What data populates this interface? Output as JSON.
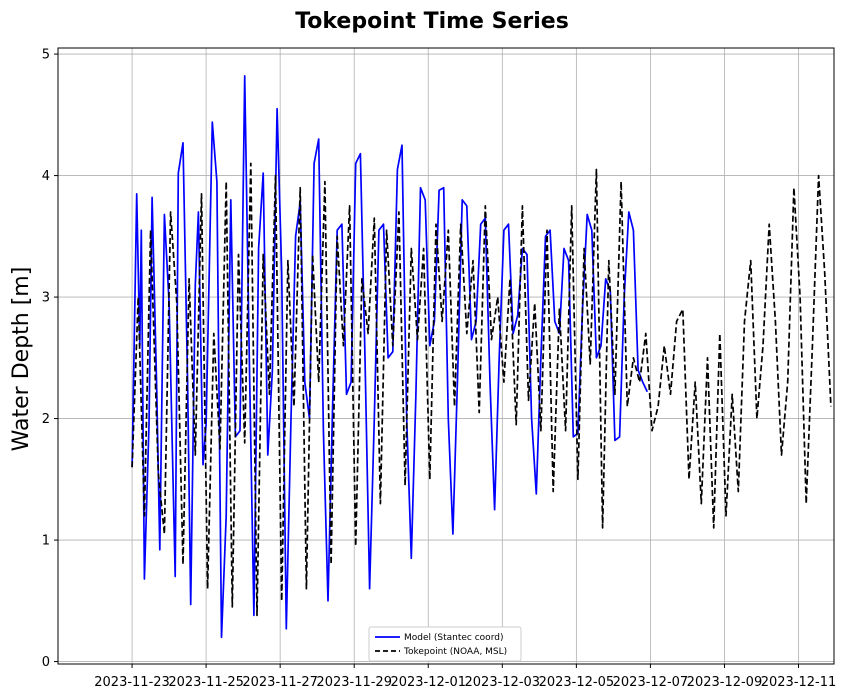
{
  "chart_data": {
    "type": "line",
    "title": "Tokepoint Time Series",
    "xlabel": "",
    "ylabel": "Water Depth [m]",
    "x_tick_labels": [
      "2023-11-23",
      "2023-11-25",
      "2023-11-27",
      "2023-11-29",
      "2023-12-01",
      "2023-12-03",
      "2023-12-05",
      "2023-12-07",
      "2023-12-09",
      "2023-12-11"
    ],
    "x_ticks": [
      "2023-11-23",
      "2023-11-25",
      "2023-11-27",
      "2023-11-29",
      "2023-12-01",
      "2023-12-03",
      "2023-12-05",
      "2023-12-07",
      "2023-12-09",
      "2023-12-11"
    ],
    "xlim": [
      "2023-11-21T00:00",
      "2023-12-11T23:00"
    ],
    "y_ticks": [
      0,
      1,
      2,
      3,
      4,
      5
    ],
    "y_tick_labels": [
      "0",
      "1",
      "2",
      "3",
      "4",
      "5"
    ],
    "ylim": [
      -0.02,
      5.05
    ],
    "grid": true,
    "legend": "lower-center",
    "series": [
      {
        "name": "Model (Stantec coord)",
        "color": "#0000ff",
        "style": "solid",
        "x": [
          "2023-11-23T00:00",
          "2023-11-23T03:00",
          "2023-11-23T05:00",
          "2023-11-23T06:00",
          "2023-11-23T08:00",
          "2023-11-23T11:00",
          "2023-11-23T13:00",
          "2023-11-23T16:00",
          "2023-11-23T18:00",
          "2023-11-23T21:00",
          "2023-11-24T00:00",
          "2023-11-24T04:00",
          "2023-11-24T06:00",
          "2023-11-24T09:00",
          "2023-11-24T12:00",
          "2023-11-24T14:00",
          "2023-11-24T17:00",
          "2023-11-24T19:00",
          "2023-11-24T22:00",
          "2023-11-25T00:00",
          "2023-11-25T04:00",
          "2023-11-25T07:00",
          "2023-11-25T10:00",
          "2023-11-25T13:00",
          "2023-11-25T16:00",
          "2023-11-25T19:00",
          "2023-11-25T22:00",
          "2023-11-26T01:00",
          "2023-11-26T04:00",
          "2023-11-26T07:00",
          "2023-11-26T10:00",
          "2023-11-26T13:00",
          "2023-11-26T16:00",
          "2023-11-26T19:00",
          "2023-11-26T22:00",
          "2023-11-27T01:00",
          "2023-11-27T04:00",
          "2023-11-27T07:00",
          "2023-11-27T10:00",
          "2023-11-27T13:00",
          "2023-11-27T16:00",
          "2023-11-27T19:00",
          "2023-11-27T22:00",
          "2023-11-28T01:00",
          "2023-11-28T04:00",
          "2023-11-28T07:00",
          "2023-11-28T10:00",
          "2023-11-28T13:00",
          "2023-11-28T16:00",
          "2023-11-28T19:00",
          "2023-11-28T22:00",
          "2023-11-29T01:00",
          "2023-11-29T04:00",
          "2023-11-29T07:00",
          "2023-11-29T10:00",
          "2023-11-29T13:00",
          "2023-11-29T16:00",
          "2023-11-29T19:00",
          "2023-11-29T22:00",
          "2023-11-30T01:00",
          "2023-11-30T04:00",
          "2023-11-30T07:00",
          "2023-11-30T10:00",
          "2023-11-30T13:00",
          "2023-11-30T16:00",
          "2023-11-30T19:00",
          "2023-11-30T22:00",
          "2023-12-01T01:00",
          "2023-12-01T04:00",
          "2023-12-01T07:00",
          "2023-12-01T10:00",
          "2023-12-01T13:00",
          "2023-12-01T16:00",
          "2023-12-01T19:00",
          "2023-12-01T22:00",
          "2023-12-02T01:00",
          "2023-12-02T04:00",
          "2023-12-02T07:00",
          "2023-12-02T10:00",
          "2023-12-02T13:00",
          "2023-12-02T16:00",
          "2023-12-02T19:00",
          "2023-12-02T22:00",
          "2023-12-03T01:00",
          "2023-12-03T04:00",
          "2023-12-03T07:00",
          "2023-12-03T10:00",
          "2023-12-03T13:00",
          "2023-12-03T16:00",
          "2023-12-03T19:00",
          "2023-12-03T22:00",
          "2023-12-04T01:00",
          "2023-12-04T04:00",
          "2023-12-04T07:00",
          "2023-12-04T10:00",
          "2023-12-04T13:00",
          "2023-12-04T16:00",
          "2023-12-04T19:00",
          "2023-12-04T22:00",
          "2023-12-05T01:00",
          "2023-12-05T04:00",
          "2023-12-05T07:00",
          "2023-12-05T10:00",
          "2023-12-05T13:00",
          "2023-12-05T16:00",
          "2023-12-05T19:00",
          "2023-12-05T22:00",
          "2023-12-06T01:00",
          "2023-12-06T04:00",
          "2023-12-06T07:00",
          "2023-12-06T10:00",
          "2023-12-06T13:00",
          "2023-12-06T16:00",
          "2023-12-06T19:00",
          "2023-12-06T22:00"
        ],
        "y": [
          1.6,
          3.85,
          2.6,
          3.55,
          0.68,
          1.95,
          3.82,
          2.25,
          0.92,
          3.68,
          2.95,
          0.7,
          4.02,
          4.27,
          2.3,
          0.47,
          3.1,
          3.7,
          1.62,
          1.95,
          4.44,
          3.95,
          0.2,
          1.2,
          3.8,
          1.85,
          1.9,
          4.82,
          2.5,
          0.38,
          3.4,
          4.02,
          1.7,
          2.4,
          4.55,
          3.2,
          0.27,
          2.0,
          3.5,
          3.78,
          2.3,
          2.0,
          4.1,
          4.3,
          1.9,
          0.5,
          2.1,
          3.55,
          3.6,
          2.2,
          2.3,
          4.1,
          4.18,
          2.5,
          0.6,
          2.0,
          3.55,
          3.6,
          2.5,
          2.55,
          4.05,
          4.25,
          2.0,
          0.85,
          2.2,
          3.9,
          3.8,
          2.6,
          2.8,
          3.88,
          3.9,
          2.0,
          1.05,
          2.35,
          3.8,
          3.75,
          2.65,
          2.8,
          3.6,
          3.65,
          2.3,
          1.25,
          2.5,
          3.55,
          3.6,
          2.7,
          2.85,
          3.4,
          3.35,
          2.0,
          1.38,
          2.5,
          3.5,
          3.55,
          2.8,
          2.7,
          3.4,
          3.3,
          1.85,
          1.88,
          2.9,
          3.68,
          3.55,
          2.5,
          2.6,
          3.15,
          3.05,
          1.82,
          1.85,
          3.0,
          3.7,
          3.55,
          2.4,
          2.3,
          2.22
        ]
      },
      {
        "name": "Tokepoint (NOAA, MSL)",
        "color": "#000000",
        "style": "dashed",
        "x": [
          "2023-11-23T00:00",
          "2023-11-23T04:00",
          "2023-11-23T08:00",
          "2023-11-23T12:00",
          "2023-11-23T17:00",
          "2023-11-23T21:00",
          "2023-11-24T01:00",
          "2023-11-24T05:00",
          "2023-11-24T09:00",
          "2023-11-24T13:00",
          "2023-11-24T17:00",
          "2023-11-24T21:00",
          "2023-11-25T01:00",
          "2023-11-25T05:00",
          "2023-11-25T09:00",
          "2023-11-25T13:00",
          "2023-11-25T17:00",
          "2023-11-25T21:00",
          "2023-11-26T01:00",
          "2023-11-26T05:00",
          "2023-11-26T09:00",
          "2023-11-26T13:00",
          "2023-11-26T17:00",
          "2023-11-26T21:00",
          "2023-11-27T01:00",
          "2023-11-27T05:00",
          "2023-11-27T09:00",
          "2023-11-27T13:00",
          "2023-11-27T17:00",
          "2023-11-27T21:00",
          "2023-11-28T01:00",
          "2023-11-28T05:00",
          "2023-11-28T09:00",
          "2023-11-28T13:00",
          "2023-11-28T17:00",
          "2023-11-28T21:00",
          "2023-11-29T01:00",
          "2023-11-29T05:00",
          "2023-11-29T09:00",
          "2023-11-29T13:00",
          "2023-11-29T17:00",
          "2023-11-29T21:00",
          "2023-11-30T01:00",
          "2023-11-30T05:00",
          "2023-11-30T09:00",
          "2023-11-30T13:00",
          "2023-11-30T17:00",
          "2023-11-30T21:00",
          "2023-12-01T01:00",
          "2023-12-01T05:00",
          "2023-12-01T09:00",
          "2023-12-01T13:00",
          "2023-12-01T17:00",
          "2023-12-01T21:00",
          "2023-12-02T01:00",
          "2023-12-02T05:00",
          "2023-12-02T09:00",
          "2023-12-02T13:00",
          "2023-12-02T17:00",
          "2023-12-02T21:00",
          "2023-12-03T01:00",
          "2023-12-03T05:00",
          "2023-12-03T09:00",
          "2023-12-03T13:00",
          "2023-12-03T17:00",
          "2023-12-03T21:00",
          "2023-12-04T01:00",
          "2023-12-04T05:00",
          "2023-12-04T09:00",
          "2023-12-04T13:00",
          "2023-12-04T17:00",
          "2023-12-04T21:00",
          "2023-12-05T01:00",
          "2023-12-05T05:00",
          "2023-12-05T09:00",
          "2023-12-05T13:00",
          "2023-12-05T17:00",
          "2023-12-05T21:00",
          "2023-12-06T01:00",
          "2023-12-06T05:00",
          "2023-12-06T09:00",
          "2023-12-06T13:00",
          "2023-12-06T17:00",
          "2023-12-06T21:00",
          "2023-12-07T01:00",
          "2023-12-07T05:00",
          "2023-12-07T09:00",
          "2023-12-07T13:00",
          "2023-12-07T17:00",
          "2023-12-07T21:00",
          "2023-12-08T01:00",
          "2023-12-08T05:00",
          "2023-12-08T09:00",
          "2023-12-08T13:00",
          "2023-12-08T17:00",
          "2023-12-08T21:00",
          "2023-12-09T01:00",
          "2023-12-09T05:00",
          "2023-12-09T09:00",
          "2023-12-09T13:00",
          "2023-12-09T17:00",
          "2023-12-09T21:00",
          "2023-12-10T01:00",
          "2023-12-10T05:00",
          "2023-12-10T09:00",
          "2023-12-10T13:00",
          "2023-12-10T17:00",
          "2023-12-10T21:00",
          "2023-12-11T01:00",
          "2023-12-11T05:00",
          "2023-12-11T09:00",
          "2023-12-11T13:00",
          "2023-12-11T17:00",
          "2023-12-11T21:00"
        ],
        "y": [
          1.6,
          3.0,
          1.2,
          3.55,
          1.55,
          1.05,
          3.7,
          2.95,
          0.8,
          3.15,
          1.7,
          3.85,
          0.6,
          2.7,
          1.75,
          3.95,
          0.45,
          3.35,
          1.8,
          4.1,
          0.38,
          3.35,
          2.2,
          4.0,
          0.5,
          3.3,
          2.1,
          3.9,
          0.6,
          3.35,
          2.3,
          3.95,
          0.8,
          3.5,
          2.6,
          3.75,
          0.95,
          3.15,
          2.7,
          3.65,
          1.3,
          3.55,
          2.6,
          3.7,
          1.45,
          3.4,
          2.65,
          3.4,
          1.5,
          3.6,
          2.8,
          3.55,
          2.1,
          3.6,
          2.7,
          3.3,
          2.05,
          3.75,
          2.65,
          3.0,
          2.3,
          3.15,
          1.95,
          3.75,
          2.15,
          2.95,
          1.9,
          3.55,
          1.4,
          2.9,
          1.9,
          3.75,
          1.5,
          3.4,
          2.45,
          4.05,
          1.1,
          3.3,
          2.2,
          3.95,
          2.1,
          2.5,
          2.3,
          2.7,
          1.9,
          2.1,
          2.6,
          2.2,
          2.8,
          2.9,
          1.5,
          2.3,
          1.3,
          2.5,
          1.1,
          2.7,
          1.2,
          2.2,
          1.4,
          2.8,
          3.3,
          2.0,
          2.6,
          3.6,
          2.8,
          1.7,
          2.3,
          3.9,
          3.0,
          1.3,
          2.6,
          4.0,
          3.2,
          2.1
        ]
      }
    ]
  }
}
